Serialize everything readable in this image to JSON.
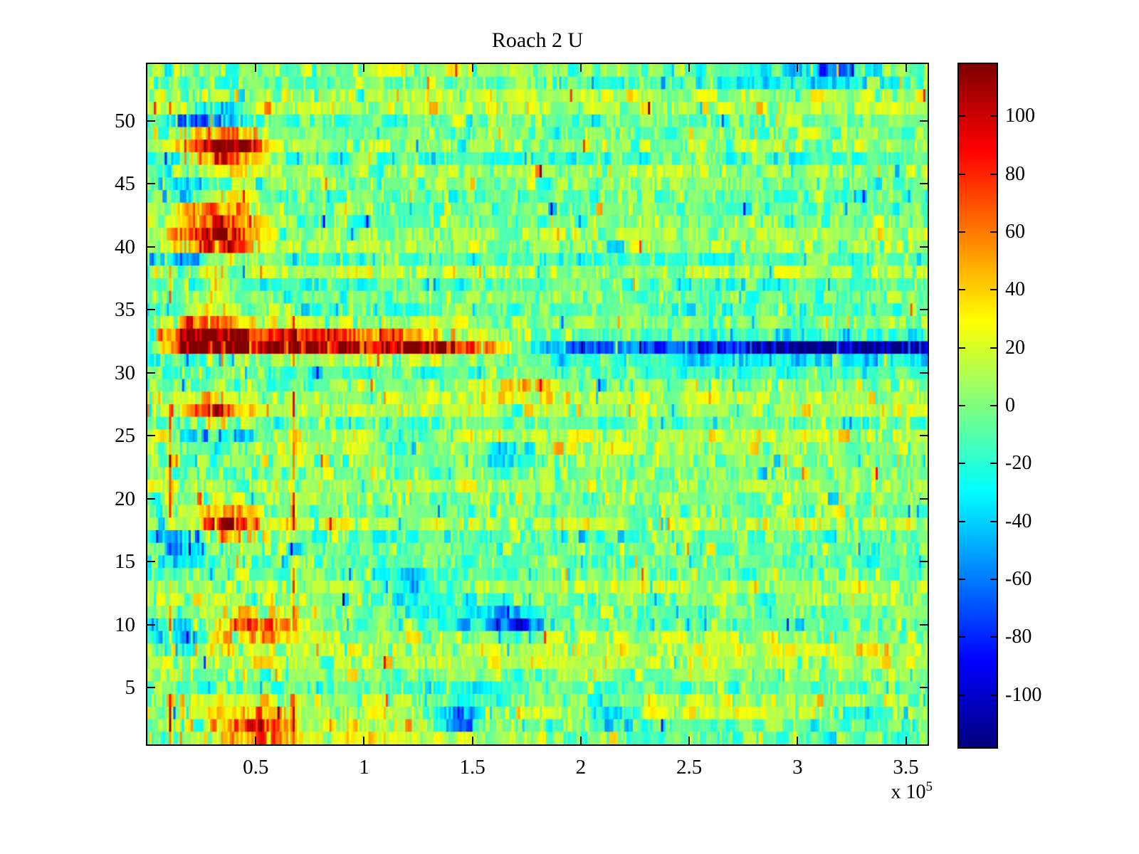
{
  "chart_data": {
    "type": "heatmap",
    "title": "Roach 2 U",
    "x_axis": {
      "min": 0,
      "max": 360000,
      "tick_values": [
        50000,
        100000,
        150000,
        200000,
        250000,
        300000,
        350000
      ],
      "tick_labels": [
        "0.5",
        "1",
        "1.5",
        "2",
        "2.5",
        "3",
        "3.5"
      ],
      "multiplier_prefix": "x 10",
      "multiplier_exponent": "5"
    },
    "y_axis": {
      "min": 0.5,
      "max": 54.5,
      "rows": 54,
      "tick_values": [
        5,
        10,
        15,
        20,
        25,
        30,
        35,
        40,
        45,
        50
      ],
      "tick_labels": [
        "5",
        "10",
        "15",
        "20",
        "25",
        "30",
        "35",
        "40",
        "45",
        "50"
      ]
    },
    "colorbar": {
      "colormap": "jet",
      "vmin": -118,
      "vmax": 118,
      "tick_values": [
        100,
        80,
        60,
        40,
        20,
        0,
        -20,
        -40,
        -60,
        -80,
        -100
      ],
      "tick_labels": [
        "100",
        "80",
        "60",
        "40",
        "20",
        "0",
        "-20",
        "-40",
        "-60",
        "-80",
        "-100"
      ]
    },
    "grid": {
      "cols": 360,
      "rows": 54
    },
    "noise": {
      "seed": 1337,
      "row_offset_sd": 8,
      "cell_sd": 14,
      "streak_keep_prob": 0.45,
      "spike_prob": 0.022,
      "spike_gain": 2.6,
      "left_boost_cols": 90,
      "left_boost_factor": 1.35
    },
    "features": {
      "blobs": [
        {
          "row": 50.2,
          "col": 30,
          "sx": 13,
          "sy": 0.8,
          "amp": -80
        },
        {
          "row": 48,
          "col": 34,
          "sx": 13,
          "sy": 1.3,
          "amp": 115
        },
        {
          "row": 45.5,
          "col": 17,
          "sx": 11,
          "sy": 1.4,
          "amp": -40
        },
        {
          "row": 43,
          "col": 30,
          "sx": 11,
          "sy": 0.7,
          "amp": 40
        },
        {
          "row": 41,
          "col": 32,
          "sx": 13,
          "sy": 1.3,
          "amp": 105
        },
        {
          "row": 39,
          "col": 18,
          "sx": 9,
          "sy": 0.7,
          "amp": -40
        },
        {
          "row": 37,
          "col": 33,
          "sx": 6,
          "sy": 0.6,
          "amp": 45
        },
        {
          "row": 34,
          "col": 30,
          "sx": 10,
          "sy": 0.9,
          "amp": 70
        },
        {
          "row": 29,
          "col": 170,
          "sx": 14,
          "sy": 0.6,
          "amp": 38
        },
        {
          "row": 26.7,
          "col": 30,
          "sx": 8,
          "sy": 0.8,
          "amp": 85
        },
        {
          "row": 25,
          "col": 30,
          "sx": 12,
          "sy": 0.7,
          "amp": -70
        },
        {
          "row": 24.5,
          "col": 120,
          "sx": 9,
          "sy": 0.8,
          "amp": -40
        },
        {
          "row": 23.5,
          "col": 165,
          "sx": 7,
          "sy": 0.8,
          "amp": -55
        },
        {
          "row": 18,
          "col": 36,
          "sx": 9,
          "sy": 1.1,
          "amp": 90
        },
        {
          "row": 16.5,
          "col": 15,
          "sx": 9,
          "sy": 1.1,
          "amp": -60
        },
        {
          "row": 13,
          "col": 120,
          "sx": 10,
          "sy": 0.9,
          "amp": -45
        },
        {
          "row": 11,
          "col": 155,
          "sx": 18,
          "sy": 1.2,
          "amp": -30
        },
        {
          "row": 10,
          "col": 170,
          "sx": 6,
          "sy": 0.8,
          "amp": -65
        },
        {
          "row": 10,
          "col": 50,
          "sx": 16,
          "sy": 0.8,
          "amp": 70
        },
        {
          "row": 9,
          "col": 14,
          "sx": 8,
          "sy": 0.9,
          "amp": -65
        },
        {
          "row": 4.5,
          "col": 150,
          "sx": 14,
          "sy": 0.8,
          "amp": -32
        },
        {
          "row": 2.5,
          "col": 142,
          "sx": 7,
          "sy": 0.8,
          "amp": -75
        },
        {
          "row": 3,
          "col": 215,
          "sx": 9,
          "sy": 0.7,
          "amp": -45
        },
        {
          "row": 3,
          "col": 330,
          "sx": 10,
          "sy": 0.7,
          "amp": -45
        },
        {
          "row": 1.7,
          "col": 48,
          "sx": 14,
          "sy": 1.0,
          "amp": 85
        },
        {
          "row": 1.3,
          "col": 110,
          "sx": 35,
          "sy": 0.7,
          "amp": 35
        },
        {
          "row": 54,
          "col": 315,
          "sx": 12,
          "sy": 0.7,
          "amp": -60
        },
        {
          "row": 53.5,
          "col": 285,
          "sx": 35,
          "sy": 0.9,
          "amp": -22
        }
      ],
      "bands": [
        {
          "row": 32,
          "sy": 0.55,
          "profile": [
            [
              4,
              0
            ],
            [
              8,
              40
            ],
            [
              15,
              90
            ],
            [
              22,
              112
            ],
            [
              130,
              112
            ],
            [
              150,
              88
            ],
            [
              162,
              55
            ],
            [
              170,
              15
            ],
            [
              178,
              -25
            ],
            [
              195,
              -55
            ],
            [
              255,
              -62
            ],
            [
              275,
              -95
            ],
            [
              295,
              -112
            ],
            [
              350,
              -110
            ],
            [
              359,
              -85
            ]
          ]
        },
        {
          "row": 33,
          "sy": 0.5,
          "profile": [
            [
              3,
              0
            ],
            [
              8,
              40
            ],
            [
              15,
              70
            ],
            [
              70,
              68
            ],
            [
              100,
              45
            ],
            [
              128,
              18
            ],
            [
              140,
              0
            ]
          ]
        }
      ],
      "vlines": [
        {
          "col": 10,
          "amp": 95,
          "sy": 0.9,
          "rows": [
            37,
            26,
            23,
            19.5,
            10,
            3,
            1.5
          ]
        },
        {
          "col": 67,
          "amp": 80,
          "sy": 1.2,
          "rows": [
            33,
            27,
            23,
            19,
            13,
            2.7
          ]
        }
      ]
    }
  }
}
